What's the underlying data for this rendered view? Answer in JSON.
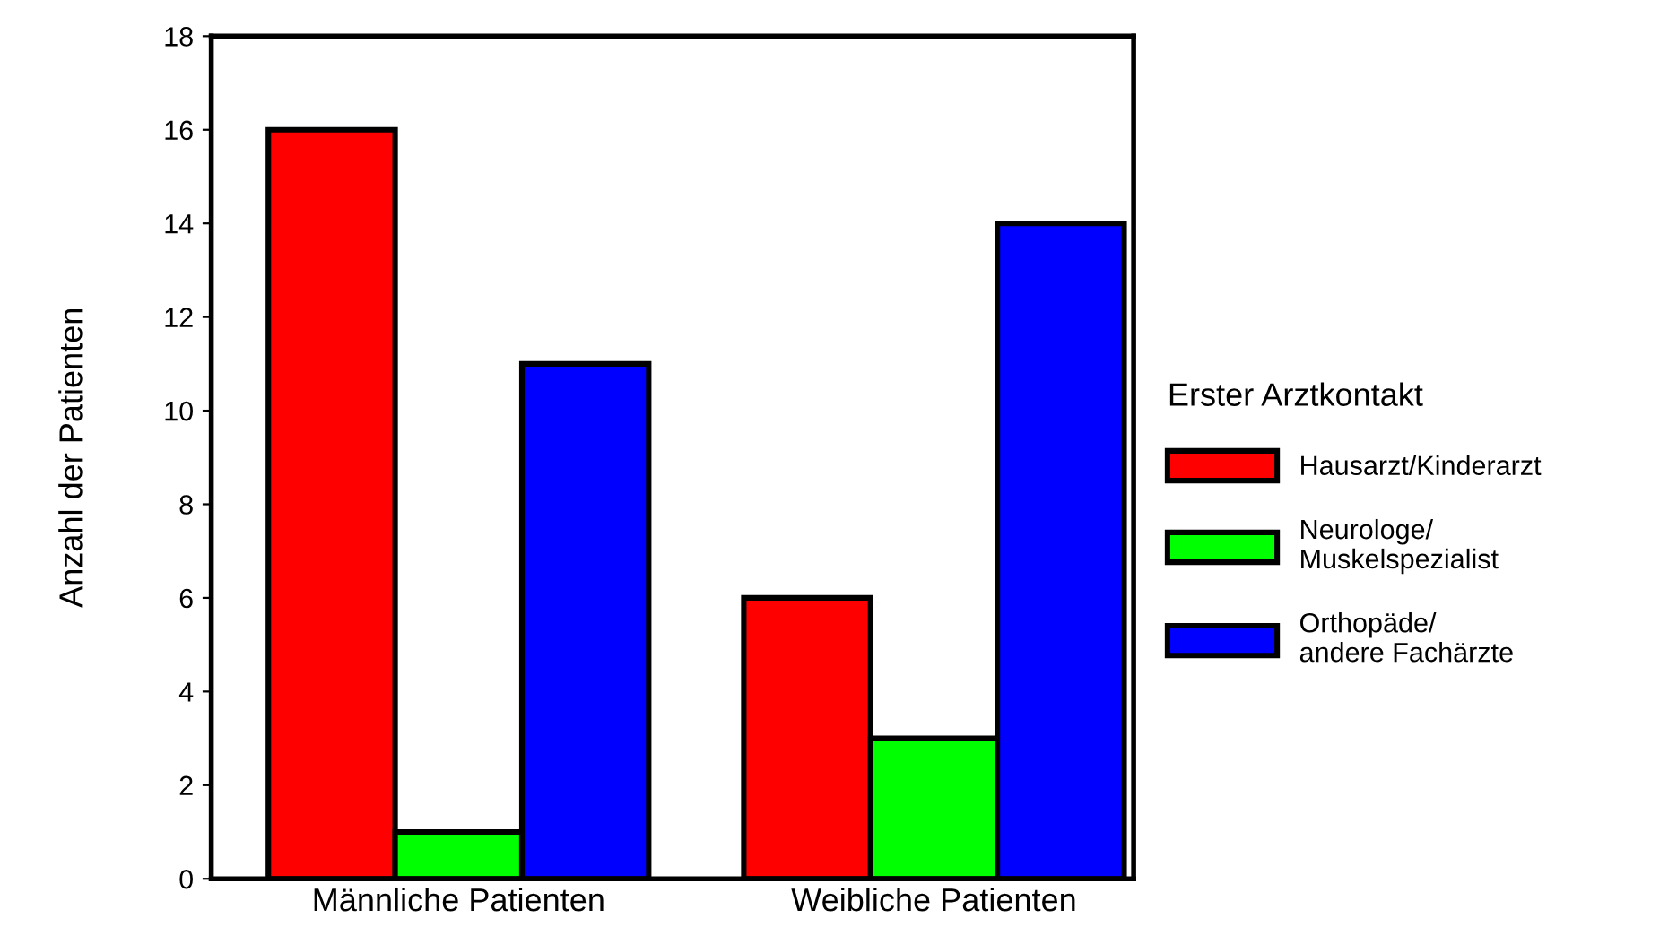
{
  "chart_data": {
    "type": "bar",
    "ylabel": "Anzahl der Patienten",
    "legend_title": "Erster Arztkontakt",
    "categories": [
      "Männliche Patienten",
      "Weibliche Patienten"
    ],
    "series": [
      {
        "name": "Hausarzt/Kinderarzt",
        "color": "#ff0000",
        "values": [
          16,
          6
        ]
      },
      {
        "name": "Neurologe/\nMuskelspezialist",
        "color": "#00ff00",
        "values": [
          1,
          3
        ]
      },
      {
        "name": "Orthopäde/\nandere Fachärzte",
        "color": "#0000ff",
        "values": [
          11,
          14
        ]
      }
    ],
    "ylim": [
      0,
      18
    ],
    "yticks": [
      0,
      2,
      4,
      6,
      8,
      10,
      12,
      14,
      16,
      18
    ],
    "grid": false,
    "legend": "right"
  }
}
